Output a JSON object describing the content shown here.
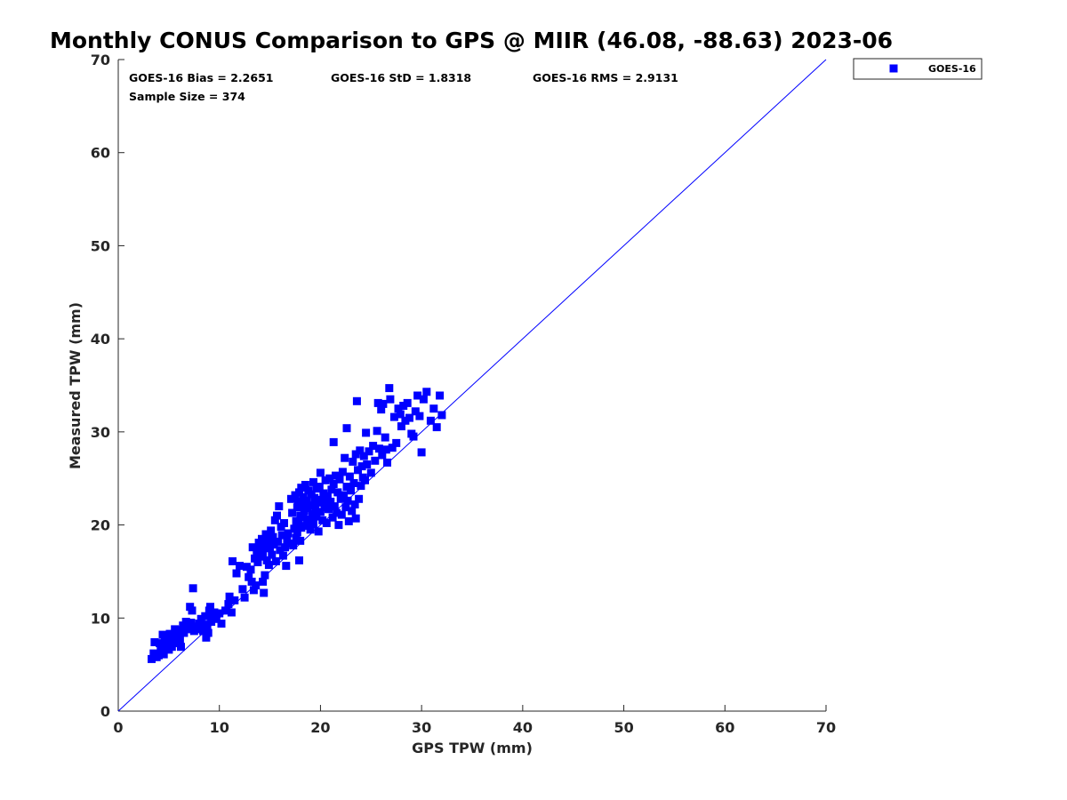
{
  "chart_data": {
    "type": "scatter",
    "title": "Monthly CONUS Comparison to GPS @ MIIR (46.08, -88.63) 2023-06",
    "xlabel": "GPS TPW (mm)",
    "ylabel": "Measured TPW (mm)",
    "xlim": [
      0,
      70
    ],
    "ylim": [
      0,
      70
    ],
    "xticks": [
      0,
      10,
      20,
      30,
      40,
      50,
      60,
      70
    ],
    "yticks": [
      0,
      10,
      20,
      30,
      40,
      50,
      60,
      70
    ],
    "grid": false,
    "legend_position": "top-right outside",
    "reference_line": {
      "name": "1:1 line",
      "x": [
        0,
        70
      ],
      "y": [
        0,
        70
      ],
      "color": "#0000ff"
    },
    "stats": {
      "bias": "GOES-16 Bias = 2.2651",
      "std": "GOES-16 StD = 1.8318",
      "rms": "GOES-16 RMS = 2.9131",
      "sample": "Sample Size = 374"
    },
    "series": [
      {
        "name": "GOES-16",
        "marker": "square",
        "color": "#0000ff",
        "points": [
          [
            3.3,
            5.6
          ],
          [
            3.5,
            6.2
          ],
          [
            3.6,
            7.4
          ],
          [
            3.8,
            5.8
          ],
          [
            4.0,
            6.0
          ],
          [
            4.1,
            7.3
          ],
          [
            4.2,
            6.5
          ],
          [
            4.3,
            7.0
          ],
          [
            4.4,
            8.2
          ],
          [
            4.5,
            6.1
          ],
          [
            4.6,
            7.6
          ],
          [
            4.7,
            6.8
          ],
          [
            4.8,
            8.0
          ],
          [
            4.9,
            7.2
          ],
          [
            5.0,
            6.6
          ],
          [
            5.1,
            8.3
          ],
          [
            5.2,
            7.5
          ],
          [
            5.3,
            6.9
          ],
          [
            5.4,
            7.8
          ],
          [
            5.5,
            8.1
          ],
          [
            5.6,
            8.8
          ],
          [
            5.7,
            7.9
          ],
          [
            5.8,
            8.5
          ],
          [
            6.0,
            8.2
          ],
          [
            6.1,
            7.6
          ],
          [
            6.2,
            6.9
          ],
          [
            6.4,
            9.2
          ],
          [
            6.5,
            8.4
          ],
          [
            6.7,
            9.6
          ],
          [
            6.8,
            8.8
          ],
          [
            7.0,
            9.0
          ],
          [
            7.1,
            11.2
          ],
          [
            7.2,
            9.5
          ],
          [
            7.3,
            10.8
          ],
          [
            7.4,
            13.2
          ],
          [
            7.5,
            8.6
          ],
          [
            7.7,
            9.1
          ],
          [
            7.9,
            8.8
          ],
          [
            8.0,
            9.4
          ],
          [
            8.2,
            9.9
          ],
          [
            8.4,
            8.6
          ],
          [
            8.5,
            9.3
          ],
          [
            8.6,
            10.2
          ],
          [
            8.7,
            7.9
          ],
          [
            8.8,
            9.1
          ],
          [
            8.9,
            8.4
          ],
          [
            9.0,
            10.8
          ],
          [
            9.1,
            11.2
          ],
          [
            9.2,
            9.6
          ],
          [
            9.3,
            10.3
          ],
          [
            9.5,
            10.6
          ],
          [
            10.2,
            9.4
          ],
          [
            10.6,
            10.8
          ],
          [
            10.9,
            11.5
          ],
          [
            11.0,
            12.3
          ],
          [
            11.2,
            10.6
          ],
          [
            11.3,
            16.1
          ],
          [
            11.5,
            11.9
          ],
          [
            11.7,
            14.8
          ],
          [
            12.0,
            15.6
          ],
          [
            12.3,
            13.1
          ],
          [
            12.5,
            12.2
          ],
          [
            12.7,
            15.5
          ],
          [
            12.9,
            14.4
          ],
          [
            13.1,
            15.2
          ],
          [
            13.2,
            13.9
          ],
          [
            13.3,
            17.6
          ],
          [
            13.4,
            13.0
          ],
          [
            13.5,
            16.4
          ],
          [
            13.6,
            13.5
          ],
          [
            13.7,
            17.2
          ],
          [
            13.8,
            16.0
          ],
          [
            13.9,
            18.1
          ],
          [
            14.0,
            17.4
          ],
          [
            14.1,
            16.6
          ],
          [
            14.2,
            18.5
          ],
          [
            14.3,
            17.0
          ],
          [
            14.3,
            13.9
          ],
          [
            14.4,
            12.7
          ],
          [
            14.5,
            17.8
          ],
          [
            14.5,
            14.6
          ],
          [
            14.6,
            19.0
          ],
          [
            14.7,
            16.2
          ],
          [
            14.8,
            18.3
          ],
          [
            14.9,
            15.7
          ],
          [
            15.0,
            17.5
          ],
          [
            15.1,
            19.4
          ],
          [
            15.2,
            16.8
          ],
          [
            15.3,
            18.7
          ],
          [
            15.4,
            17.9
          ],
          [
            15.5,
            20.5
          ],
          [
            15.6,
            16.1
          ],
          [
            15.7,
            21.0
          ],
          [
            15.8,
            18.2
          ],
          [
            15.9,
            22.0
          ],
          [
            16.0,
            17.3
          ],
          [
            16.1,
            19.8
          ],
          [
            16.2,
            18.9
          ],
          [
            16.3,
            16.7
          ],
          [
            16.4,
            20.2
          ],
          [
            16.5,
            17.6
          ],
          [
            16.6,
            15.6
          ],
          [
            16.7,
            18.4
          ],
          [
            16.8,
            19.1
          ],
          [
            17.0,
            18.0
          ],
          [
            17.1,
            22.8
          ],
          [
            17.2,
            21.3
          ],
          [
            17.3,
            17.8
          ],
          [
            17.4,
            19.6
          ],
          [
            17.5,
            23.2
          ],
          [
            17.6,
            20.4
          ],
          [
            17.6,
            18.6
          ],
          [
            17.7,
            21.9
          ],
          [
            17.7,
            19.2
          ],
          [
            17.8,
            22.5
          ],
          [
            17.8,
            20.0
          ],
          [
            17.9,
            16.2
          ],
          [
            17.9,
            23.5
          ],
          [
            18.0,
            21.0
          ],
          [
            18.0,
            18.3
          ],
          [
            18.1,
            24.0
          ],
          [
            18.1,
            19.7
          ],
          [
            18.2,
            22.2
          ],
          [
            18.3,
            20.8
          ],
          [
            18.3,
            23.0
          ],
          [
            18.4,
            21.5
          ],
          [
            18.5,
            19.9
          ],
          [
            18.5,
            24.3
          ],
          [
            18.6,
            22.6
          ],
          [
            18.7,
            20.3
          ],
          [
            18.7,
            21.8
          ],
          [
            18.8,
            23.7
          ],
          [
            18.9,
            20.6
          ],
          [
            19.0,
            22.1
          ],
          [
            19.0,
            19.5
          ],
          [
            19.1,
            23.3
          ],
          [
            19.2,
            21.2
          ],
          [
            19.3,
            24.6
          ],
          [
            19.3,
            20.1
          ],
          [
            19.4,
            22.9
          ],
          [
            19.5,
            21.6
          ],
          [
            19.6,
            23.9
          ],
          [
            19.6,
            20.9
          ],
          [
            19.7,
            22.4
          ],
          [
            19.8,
            19.3
          ],
          [
            19.9,
            24.1
          ],
          [
            20.0,
            21.4
          ],
          [
            20.0,
            25.6
          ],
          [
            20.1,
            22.7
          ],
          [
            20.2,
            20.5
          ],
          [
            20.3,
            23.4
          ],
          [
            20.4,
            21.9
          ],
          [
            20.5,
            24.8
          ],
          [
            20.5,
            22.3
          ],
          [
            20.6,
            20.2
          ],
          [
            20.7,
            23.1
          ],
          [
            20.8,
            21.7
          ],
          [
            20.9,
            25.0
          ],
          [
            21.0,
            22.5
          ],
          [
            21.1,
            23.8
          ],
          [
            21.2,
            20.8
          ],
          [
            21.3,
            24.4
          ],
          [
            21.3,
            28.9
          ],
          [
            21.4,
            22.0
          ],
          [
            21.5,
            25.3
          ],
          [
            21.6,
            21.3
          ],
          [
            21.7,
            23.5
          ],
          [
            21.8,
            20.0
          ],
          [
            21.9,
            24.9
          ],
          [
            22.0,
            22.8
          ],
          [
            22.1,
            21.1
          ],
          [
            22.2,
            25.7
          ],
          [
            22.3,
            23.2
          ],
          [
            22.4,
            27.2
          ],
          [
            22.5,
            21.9
          ],
          [
            22.6,
            24.1
          ],
          [
            22.6,
            30.4
          ],
          [
            22.7,
            22.6
          ],
          [
            22.8,
            20.4
          ],
          [
            22.9,
            25.2
          ],
          [
            23.0,
            23.7
          ],
          [
            23.1,
            21.5
          ],
          [
            23.2,
            26.8
          ],
          [
            23.3,
            24.5
          ],
          [
            23.4,
            22.2
          ],
          [
            23.5,
            27.6
          ],
          [
            23.5,
            20.7
          ],
          [
            23.6,
            33.3
          ],
          [
            23.7,
            25.9
          ],
          [
            23.8,
            22.8
          ],
          [
            23.9,
            28.0
          ],
          [
            24.0,
            24.2
          ],
          [
            24.1,
            26.3
          ],
          [
            24.2,
            25.1
          ],
          [
            24.3,
            27.4
          ],
          [
            24.4,
            24.8
          ],
          [
            24.5,
            29.9
          ],
          [
            24.6,
            26.5
          ],
          [
            24.8,
            27.9
          ],
          [
            25.0,
            25.6
          ],
          [
            25.2,
            28.5
          ],
          [
            25.4,
            26.9
          ],
          [
            25.6,
            30.1
          ],
          [
            25.7,
            33.1
          ],
          [
            25.8,
            28.2
          ],
          [
            26.0,
            32.4
          ],
          [
            26.1,
            27.5
          ],
          [
            26.2,
            33.0
          ],
          [
            26.4,
            29.4
          ],
          [
            26.5,
            28.1
          ],
          [
            26.6,
            26.7
          ],
          [
            26.8,
            34.7
          ],
          [
            26.9,
            33.5
          ],
          [
            27.1,
            28.3
          ],
          [
            27.3,
            31.6
          ],
          [
            27.5,
            28.8
          ],
          [
            27.7,
            32.5
          ],
          [
            27.9,
            31.9
          ],
          [
            28.0,
            30.6
          ],
          [
            28.2,
            32.8
          ],
          [
            28.4,
            31.2
          ],
          [
            28.6,
            33.1
          ],
          [
            28.8,
            31.5
          ],
          [
            29.0,
            29.8
          ],
          [
            29.2,
            29.5
          ],
          [
            29.4,
            32.2
          ],
          [
            29.6,
            33.9
          ],
          [
            29.8,
            31.7
          ],
          [
            30.0,
            27.8
          ],
          [
            30.2,
            33.5
          ],
          [
            30.5,
            34.3
          ],
          [
            30.9,
            31.2
          ],
          [
            31.2,
            32.5
          ],
          [
            31.5,
            30.5
          ],
          [
            31.8,
            33.9
          ],
          [
            32.0,
            31.8
          ],
          [
            10.0,
            10.5
          ],
          [
            9.7,
            9.9
          ],
          [
            6.3,
            8.7
          ],
          [
            5.9,
            7.3
          ]
        ]
      }
    ]
  }
}
